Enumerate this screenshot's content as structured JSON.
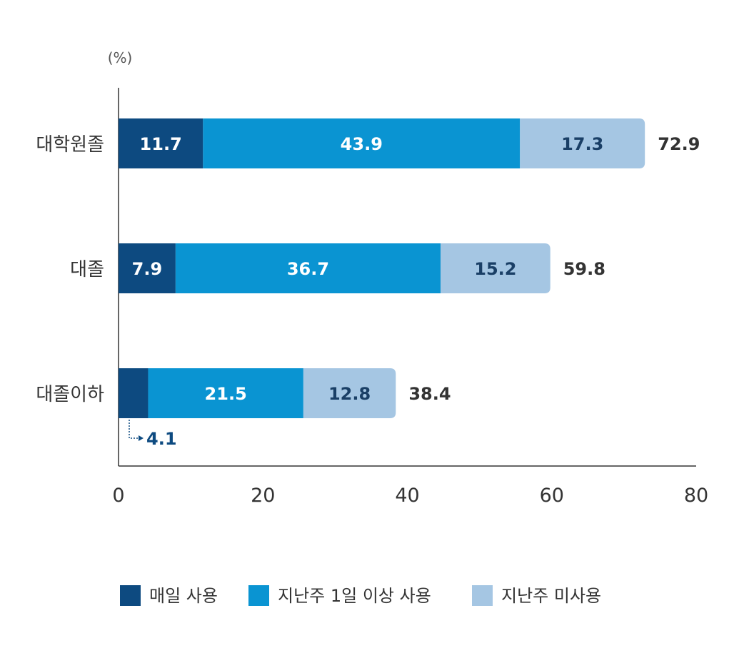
{
  "chart_data": {
    "type": "bar",
    "orientation": "horizontal",
    "stacked": true,
    "unit": "(%)",
    "categories": [
      "대학원졸",
      "대졸",
      "대졸이하"
    ],
    "series": [
      {
        "name": "매일 사용",
        "values": [
          11.7,
          7.9,
          4.1
        ],
        "color": "#0d4a80",
        "label_color": "#ffffff"
      },
      {
        "name": "지난주 1일 이상 사용",
        "values": [
          43.9,
          36.7,
          21.5
        ],
        "color": "#0a94d2",
        "label_color": "#ffffff"
      },
      {
        "name": "지난주 미사용",
        "values": [
          17.3,
          15.2,
          12.8
        ],
        "color": "#a5c6e3",
        "label_color": "#1a3f66"
      }
    ],
    "totals": [
      "72.9",
      "59.8",
      "38.4"
    ],
    "segment_labels": [
      [
        "11.7",
        "43.9",
        "17.3"
      ],
      [
        "7.9",
        "36.7",
        "15.2"
      ],
      [
        null,
        "21.5",
        "12.8"
      ]
    ],
    "callout": {
      "category_index": 2,
      "series_index": 0,
      "text": "4.1",
      "color": "#0d4a80"
    },
    "xlim": [
      0,
      80
    ],
    "xticks": [
      "0",
      "20",
      "40",
      "60",
      "80"
    ],
    "xtick_values": [
      0,
      20,
      40,
      60,
      80
    ],
    "grid": false,
    "legend_position": "bottom-center"
  }
}
